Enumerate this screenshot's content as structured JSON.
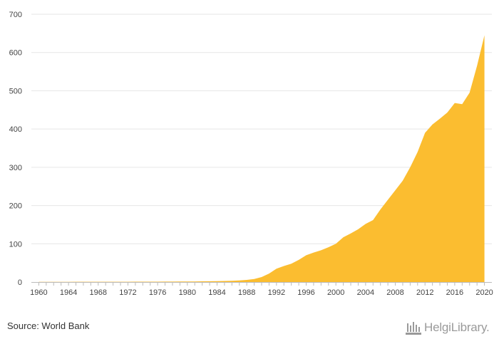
{
  "chart_data": {
    "type": "area",
    "title": "",
    "xlabel": "",
    "ylabel": "",
    "x": [
      1960,
      1961,
      1962,
      1963,
      1964,
      1965,
      1966,
      1967,
      1968,
      1969,
      1970,
      1971,
      1972,
      1973,
      1974,
      1975,
      1976,
      1977,
      1978,
      1979,
      1980,
      1981,
      1982,
      1983,
      1984,
      1985,
      1986,
      1987,
      1988,
      1989,
      1990,
      1991,
      1992,
      1993,
      1994,
      1995,
      1996,
      1997,
      1998,
      1999,
      2000,
      2001,
      2002,
      2003,
      2004,
      2005,
      2006,
      2007,
      2008,
      2009,
      2010,
      2011,
      2012,
      2013,
      2014,
      2015,
      2016,
      2017,
      2018,
      2019,
      2020
    ],
    "values": [
      0.5,
      0.5,
      0.5,
      0.5,
      0.5,
      0.6,
      0.6,
      0.6,
      0.6,
      0.7,
      0.7,
      0.8,
      0.8,
      0.9,
      1,
      1,
      1,
      1.1,
      1.2,
      1.3,
      1.4,
      1.5,
      1.8,
      2,
      2.3,
      2.8,
      3.3,
      4.3,
      5.5,
      8,
      13,
      22,
      35,
      42,
      48,
      58,
      70,
      77,
      83,
      91,
      100,
      117,
      127,
      138,
      152,
      162,
      190,
      215,
      240,
      265,
      300,
      340,
      390,
      412,
      427,
      443,
      468,
      465,
      495,
      565,
      645
    ],
    "xlim": [
      1959,
      2021
    ],
    "ylim": [
      0,
      700
    ],
    "x_ticks": [
      1960,
      1964,
      1968,
      1972,
      1976,
      1980,
      1984,
      1988,
      1992,
      1996,
      2000,
      2004,
      2008,
      2012,
      2016,
      2020
    ],
    "y_ticks": [
      0,
      100,
      200,
      300,
      400,
      500,
      600,
      700
    ],
    "grid": true,
    "legend": "none",
    "colors": {
      "area": "#fbbd30",
      "grid": "#e6e6e6",
      "axis": "#bbbbbb",
      "tick_text": "#444444"
    }
  },
  "footer": {
    "source": "Source: World Bank",
    "brand": "HelgiLibrary."
  }
}
